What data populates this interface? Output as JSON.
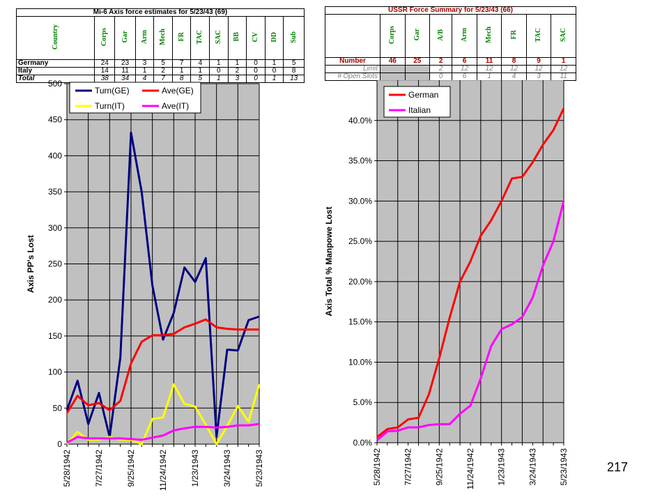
{
  "axis_table": {
    "title": "Mi-6 Axis force estimates for 5/23/43 (69)",
    "header": [
      "Country",
      "Corps",
      "Gar",
      "Arm",
      "Mech",
      "FR",
      "TAC",
      "SAC",
      "BB",
      "CV",
      "DD",
      "Sub"
    ],
    "rows": [
      {
        "label": "Germany",
        "values": [
          "24",
          "23",
          "3",
          "5",
          "7",
          "4",
          "1",
          "1",
          "0",
          "1",
          "5"
        ]
      },
      {
        "label": "Italy",
        "values": [
          "14",
          "11",
          "1",
          "2",
          "1",
          "1",
          "0",
          "2",
          "0",
          "0",
          "8"
        ]
      },
      {
        "label": "Total",
        "values": [
          "38",
          "34",
          "4",
          "7",
          "8",
          "5",
          "1",
          "3",
          "0",
          "1",
          "13"
        ]
      }
    ]
  },
  "ussr_table": {
    "title": "USSR Force Summary for 5/23/43 (66)",
    "header": [
      "Corps",
      "Gar",
      "A/B",
      "Arm",
      "Mech",
      "FR",
      "TAC",
      "SAC"
    ],
    "rows": [
      {
        "label": "Number",
        "values": [
          "46",
          "25",
          "2",
          "6",
          "11",
          "8",
          "9",
          "1"
        ]
      },
      {
        "label": "Limit",
        "values": [
          "",
          "",
          "2",
          "12",
          "12",
          "12",
          "12",
          "12"
        ]
      },
      {
        "label": "# Open Slots",
        "values": [
          "",
          "",
          "0",
          "6",
          "1",
          "4",
          "3",
          "11"
        ]
      }
    ]
  },
  "page_number": "217",
  "colors": {
    "navy": "#000080",
    "red": "#ff0000",
    "yellow": "#ffff00",
    "magenta": "#ff00ff",
    "plot_bg": "#c0c0c0"
  },
  "chart_data": [
    {
      "type": "line",
      "title": "",
      "ylabel": "Axis PP's Lost",
      "xlabel": "",
      "ylim": [
        0,
        500
      ],
      "yticks": [
        0,
        50,
        100,
        150,
        200,
        250,
        300,
        350,
        400,
        450,
        500
      ],
      "x_tick_labels": [
        "5/28/1942",
        "7/27/1942",
        "9/25/1942",
        "11/24/1942",
        "1/23/1943",
        "3/24/1943",
        "5/23/1943"
      ],
      "legend": "top-left",
      "series": [
        {
          "name": "Turn(GE)",
          "color": "#000080",
          "values": [
            47,
            88,
            28,
            71,
            10,
            120,
            432,
            350,
            220,
            145,
            182,
            245,
            225,
            258,
            10,
            131,
            130,
            172,
            177
          ]
        },
        {
          "name": "Ave(GE)",
          "color": "#ff0000",
          "values": [
            43,
            67,
            54,
            57,
            47,
            60,
            112,
            142,
            151,
            151,
            153,
            162,
            167,
            173,
            162,
            160,
            159,
            159,
            159
          ]
        },
        {
          "name": "Turn(IT)",
          "color": "#ffff00",
          "values": [
            0,
            17,
            6,
            6,
            10,
            6,
            6,
            0,
            35,
            37,
            83,
            56,
            52,
            27,
            0,
            25,
            53,
            31,
            83
          ]
        },
        {
          "name": "Ave(IT)",
          "color": "#ff00ff",
          "values": [
            2,
            10,
            8,
            8,
            8,
            8,
            7,
            6,
            9,
            12,
            19,
            22,
            24,
            24,
            23,
            24,
            26,
            26,
            28
          ]
        }
      ]
    },
    {
      "type": "line",
      "title": "",
      "ylabel": "Axis Total % Manpowe Lost",
      "xlabel": "",
      "ylim": [
        0,
        45
      ],
      "yticks": [
        "0.0%",
        "5.0%",
        "10.0%",
        "15.0%",
        "20.0%",
        "25.0%",
        "30.0%",
        "35.0%",
        "40.0%"
      ],
      "x_tick_labels": [
        "5/28/1942",
        "7/27/1942",
        "9/25/1942",
        "11/24/1942",
        "1/23/1943",
        "3/24/1943",
        "5/23/1943"
      ],
      "legend": "top-left",
      "series": [
        {
          "name": "German",
          "color": "#ff0000",
          "values": [
            0.7,
            1.7,
            1.9,
            2.9,
            3.1,
            6.0,
            10.5,
            15.5,
            20.0,
            22.5,
            25.7,
            27.6,
            30.0,
            32.8,
            33.0,
            34.8,
            37.0,
            38.8,
            41.5
          ]
        },
        {
          "name": "Italian",
          "color": "#ff00ff",
          "values": [
            0.3,
            1.4,
            1.5,
            1.9,
            1.9,
            2.2,
            2.3,
            2.3,
            3.6,
            4.6,
            8.0,
            12.0,
            14.1,
            14.7,
            15.6,
            18.0,
            22.0,
            25.0,
            30.0
          ]
        }
      ]
    }
  ]
}
